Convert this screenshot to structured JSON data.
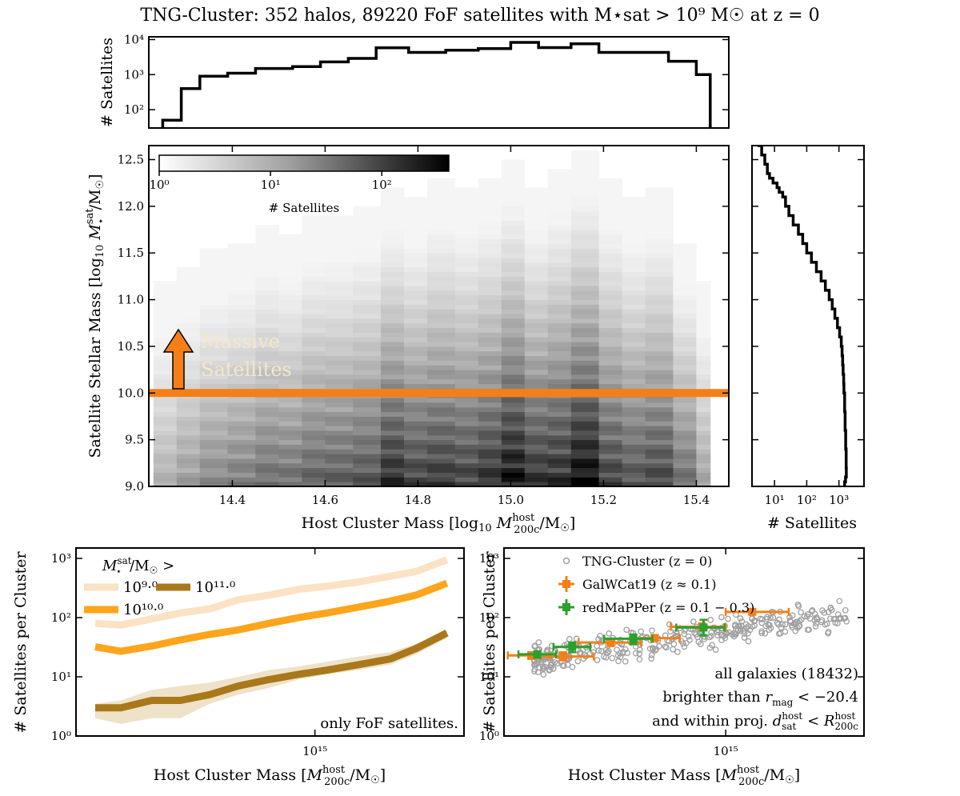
{
  "title": "TNG-Cluster: 352 halos, 89220 FoF satellites with M⋆sat > 10⁹ M☉ at z = 0",
  "colors": {
    "fof_low": "#fbe2c4",
    "fof_mid": "#ffa51c",
    "fof_high": "#a8781b",
    "fof_low_band": "#f0dcc0",
    "fof_high_band": "#eadbbb",
    "threshold": "#f57f17",
    "massive_text": "#f5e6c8",
    "tng": "#a0a0a0",
    "galwcat": "#f57f17",
    "redmapper": "#2ca02c"
  },
  "chart_data": [
    {
      "id": "top_hist",
      "type": "histogram",
      "ylabel": "# Satellites",
      "yscale": "log",
      "ylim": [
        30,
        12000
      ],
      "xlim": [
        14.22,
        15.47
      ],
      "yticks": [
        {
          "v": 100,
          "label": "10²"
        },
        {
          "v": 1000,
          "label": "10³"
        },
        {
          "v": 10000,
          "label": "10⁴"
        }
      ],
      "bin_edges": [
        14.25,
        14.29,
        14.33,
        14.39,
        14.45,
        14.53,
        14.59,
        14.65,
        14.71,
        14.78,
        14.86,
        14.93,
        15.0,
        15.06,
        15.13,
        15.19,
        15.26,
        15.34,
        15.4,
        15.43
      ],
      "counts": [
        50,
        400,
        900,
        1100,
        1500,
        1700,
        2300,
        2900,
        5800,
        4300,
        5000,
        5500,
        8300,
        5900,
        7600,
        4300,
        4300,
        2400,
        1000
      ]
    },
    {
      "id": "main_2d",
      "type": "heatmap",
      "xlabel": "Host Cluster Mass [log10 M200c host / M☉]",
      "ylabel": "Satellite Stellar Mass [log10 M⋆sat / M☉]",
      "xlim": [
        14.22,
        15.47
      ],
      "ylim": [
        9.0,
        12.65
      ],
      "xticks": [
        14.4,
        14.6,
        14.8,
        15.0,
        15.2,
        15.4
      ],
      "xtick_labels": [
        "14.4",
        "14.6",
        "14.8",
        "15.0",
        "15.2",
        "15.4"
      ],
      "yticks": [
        9.0,
        9.5,
        10.0,
        10.5,
        11.0,
        11.5,
        12.0,
        12.5
      ],
      "ytick_labels": [
        "9.0",
        "9.5",
        "10.0",
        "10.5",
        "11.0",
        "11.5",
        "12.0",
        "12.5"
      ],
      "columns": [
        {
          "x0": 14.23,
          "x1": 14.28,
          "top": 11.2,
          "peak": 0.3
        },
        {
          "x0": 14.28,
          "x1": 14.33,
          "top": 11.35,
          "peak": 0.38
        },
        {
          "x0": 14.33,
          "x1": 14.39,
          "top": 11.55,
          "peak": 0.45
        },
        {
          "x0": 14.39,
          "x1": 14.45,
          "top": 11.6,
          "peak": 0.5
        },
        {
          "x0": 14.45,
          "x1": 14.5,
          "top": 11.8,
          "peak": 0.55
        },
        {
          "x0": 14.5,
          "x1": 14.55,
          "top": 11.7,
          "peak": 0.55
        },
        {
          "x0": 14.55,
          "x1": 14.6,
          "top": 11.9,
          "peak": 0.6
        },
        {
          "x0": 14.6,
          "x1": 14.66,
          "top": 11.9,
          "peak": 0.62
        },
        {
          "x0": 14.66,
          "x1": 14.72,
          "top": 12.0,
          "peak": 0.65
        },
        {
          "x0": 14.72,
          "x1": 14.77,
          "top": 12.2,
          "peak": 0.8
        },
        {
          "x0": 14.77,
          "x1": 14.82,
          "top": 12.1,
          "peak": 0.72
        },
        {
          "x0": 14.82,
          "x1": 14.88,
          "top": 12.3,
          "peak": 0.75
        },
        {
          "x0": 14.88,
          "x1": 14.93,
          "top": 12.2,
          "peak": 0.72
        },
        {
          "x0": 14.93,
          "x1": 14.98,
          "top": 12.3,
          "peak": 0.78
        },
        {
          "x0": 14.98,
          "x1": 15.03,
          "top": 12.5,
          "peak": 0.9
        },
        {
          "x0": 15.03,
          "x1": 15.08,
          "top": 12.2,
          "peak": 0.78
        },
        {
          "x0": 15.08,
          "x1": 15.13,
          "top": 12.4,
          "peak": 0.8
        },
        {
          "x0": 15.13,
          "x1": 15.19,
          "top": 12.6,
          "peak": 0.92
        },
        {
          "x0": 15.19,
          "x1": 15.24,
          "top": 12.3,
          "peak": 0.72
        },
        {
          "x0": 15.24,
          "x1": 15.29,
          "top": 12.1,
          "peak": 0.65
        },
        {
          "x0": 15.29,
          "x1": 15.35,
          "top": 12.2,
          "peak": 0.7
        },
        {
          "x0": 15.35,
          "x1": 15.4,
          "top": 11.6,
          "peak": 0.55
        },
        {
          "x0": 15.4,
          "x1": 15.43,
          "top": 11.2,
          "peak": 0.35
        }
      ],
      "colorbar": {
        "label": "# Satellites",
        "scale": "log",
        "range": [
          1,
          400
        ],
        "ticks": [
          {
            "v": 1,
            "label": "10⁰"
          },
          {
            "v": 10,
            "label": "10¹"
          },
          {
            "v": 100,
            "label": "10²"
          }
        ]
      },
      "threshold": 10.0,
      "annotation": {
        "line1": "Massive",
        "line2": "Satellites"
      }
    },
    {
      "id": "right_hist",
      "type": "cumulative_histogram",
      "xlabel": "# Satellites",
      "xscale": "log",
      "xlim": [
        2,
        6000
      ],
      "ylim": [
        9.0,
        12.65
      ],
      "xticks": [
        {
          "v": 10,
          "label": "10¹"
        },
        {
          "v": 100,
          "label": "10²"
        },
        {
          "v": 1000,
          "label": "10³"
        }
      ],
      "y": [
        12.65,
        12.55,
        12.45,
        12.35,
        12.3,
        12.25,
        12.2,
        12.15,
        12.1,
        12.0,
        11.9,
        11.8,
        11.7,
        11.6,
        11.5,
        11.4,
        11.3,
        11.2,
        11.1,
        11.0,
        10.9,
        10.8,
        10.7,
        10.6,
        10.5,
        10.4,
        10.3,
        10.2,
        10.1,
        10.0,
        9.8,
        9.6,
        9.4,
        9.2,
        9.1,
        9.05,
        9.0
      ],
      "count": [
        3,
        4,
        5,
        6,
        7,
        9,
        12,
        14,
        18,
        22,
        28,
        38,
        55,
        75,
        100,
        140,
        200,
        280,
        380,
        500,
        620,
        750,
        900,
        1050,
        1180,
        1250,
        1300,
        1350,
        1400,
        1430,
        1500,
        1560,
        1620,
        1680,
        1700,
        1600,
        1500
      ]
    },
    {
      "id": "bottom_left",
      "type": "line",
      "xlabel": "Host Cluster Mass [M200c host / M☉]",
      "ylabel": "# Satellites per Cluster",
      "xscale": "log",
      "yscale": "log",
      "xlim": [
        155000000000000.0,
        3200000000000000.0
      ],
      "ylim": [
        1,
        1500
      ],
      "xticks": [
        {
          "v": 1000000000000000.0,
          "label": "10¹⁵"
        }
      ],
      "yticks": [
        {
          "v": 1,
          "label": "10⁰"
        },
        {
          "v": 10,
          "label": "10¹"
        },
        {
          "v": 100,
          "label": "10²"
        },
        {
          "v": 1000,
          "label": "10³"
        }
      ],
      "legend_title": "M⋆sat / M☉ >",
      "legend_labels": [
        "10⁹·⁰",
        "10¹¹·⁰",
        "10¹⁰·⁰"
      ],
      "note": "only FoF satellites.",
      "x": [
        180000000000000.0,
        220000000000000.0,
        280000000000000.0,
        350000000000000.0,
        440000000000000.0,
        550000000000000.0,
        700000000000000.0,
        880000000000000.0,
        1100000000000000.0,
        1400000000000000.0,
        1800000000000000.0,
        2200000000000000.0,
        2800000000000000.0
      ],
      "series": [
        {
          "name": "10⁹·⁰",
          "values": [
            80,
            75,
            95,
            120,
            140,
            200,
            240,
            300,
            340,
            400,
            500,
            600,
            950
          ],
          "band_lo": [],
          "band_hi": []
        },
        {
          "name": "10¹⁰·⁰",
          "values": [
            32,
            27,
            33,
            42,
            52,
            62,
            80,
            100,
            120,
            150,
            190,
            240,
            380
          ],
          "band_lo": [],
          "band_hi": []
        },
        {
          "name": "10¹¹·⁰",
          "values": [
            3,
            3,
            4,
            4,
            5,
            7,
            9,
            11,
            13,
            16,
            20,
            30,
            55
          ],
          "band_lo": [
            2,
            1.6,
            2,
            2,
            3.5,
            5,
            6.5,
            9,
            11,
            13,
            16,
            24,
            45
          ],
          "band_hi": [
            3.5,
            4,
            6,
            7,
            8,
            10,
            13,
            15,
            18,
            22,
            26,
            36,
            60
          ]
        }
      ]
    },
    {
      "id": "bottom_right",
      "type": "scatter_errorbar",
      "xlabel": "Host Cluster Mass [M200c host / M☉]",
      "ylabel": "# Satellites per Cluster",
      "xscale": "log",
      "yscale": "log",
      "xlim": [
        155000000000000.0,
        3200000000000000.0
      ],
      "ylim": [
        1,
        1500
      ],
      "xticks": [
        {
          "v": 1000000000000000.0,
          "label": "10¹⁵"
        }
      ],
      "yticks": [
        {
          "v": 1,
          "label": "10⁰"
        },
        {
          "v": 10,
          "label": "10¹"
        },
        {
          "v": 100,
          "label": "10²"
        },
        {
          "v": 1000,
          "label": "10³"
        }
      ],
      "legend": [
        "TNG-Cluster (z = 0)",
        "GalWCat19 (z ≈ 0.1)",
        "redMaPPer (z = 0.1 − 0.3)"
      ],
      "annotation": {
        "line1": "all galaxies (18432)",
        "line2": "brighter than r_mag < −20.4",
        "line3": "and within proj. d_sat host < R_200c host"
      },
      "tng_scatter": {
        "x_range": [
          200000000000000.0,
          2800000000000000.0
        ],
        "y_at_2e14": 20,
        "y_at_2e15": 90,
        "n_points": 352
      },
      "galwcat19": [
        {
          "x": 195000000000000.0,
          "y": 23,
          "xlo": 160000000000000.0,
          "xhi": 230000000000000.0,
          "ylo": 20,
          "yhi": 26
        },
        {
          "x": 255000000000000.0,
          "y": 22,
          "xlo": 210000000000000.0,
          "xhi": 330000000000000.0,
          "ylo": 19,
          "yhi": 26
        },
        {
          "x": 380000000000000.0,
          "y": 38,
          "xlo": 290000000000000.0,
          "xhi": 490000000000000.0,
          "ylo": 33,
          "yhi": 44
        },
        {
          "x": 550000000000000.0,
          "y": 45,
          "xlo": 460000000000000.0,
          "xhi": 680000000000000.0,
          "ylo": 40,
          "yhi": 51
        },
        {
          "x": 820000000000000.0,
          "y": 70,
          "xlo": 630000000000000.0,
          "xhi": 1000000000000000.0,
          "ylo": 62,
          "yhi": 80
        },
        {
          "x": 1250000000000000.0,
          "y": 125,
          "xlo": 1000000000000000.0,
          "xhi": 1700000000000000.0,
          "ylo": 112,
          "yhi": 140
        }
      ],
      "redmapper": [
        {
          "x": 205000000000000.0,
          "y": 24,
          "xlo": 175000000000000.0,
          "xhi": 240000000000000.0,
          "ylo": 21,
          "yhi": 27
        },
        {
          "x": 275000000000000.0,
          "y": 32,
          "xlo": 235000000000000.0,
          "xhi": 320000000000000.0,
          "ylo": 26,
          "yhi": 38
        },
        {
          "x": 460000000000000.0,
          "y": 44,
          "xlo": 360000000000000.0,
          "xhi": 540000000000000.0,
          "ylo": 36,
          "yhi": 52
        },
        {
          "x": 830000000000000.0,
          "y": 68,
          "xlo": 660000000000000.0,
          "xhi": 990000000000000.0,
          "ylo": 50,
          "yhi": 92
        }
      ]
    }
  ]
}
